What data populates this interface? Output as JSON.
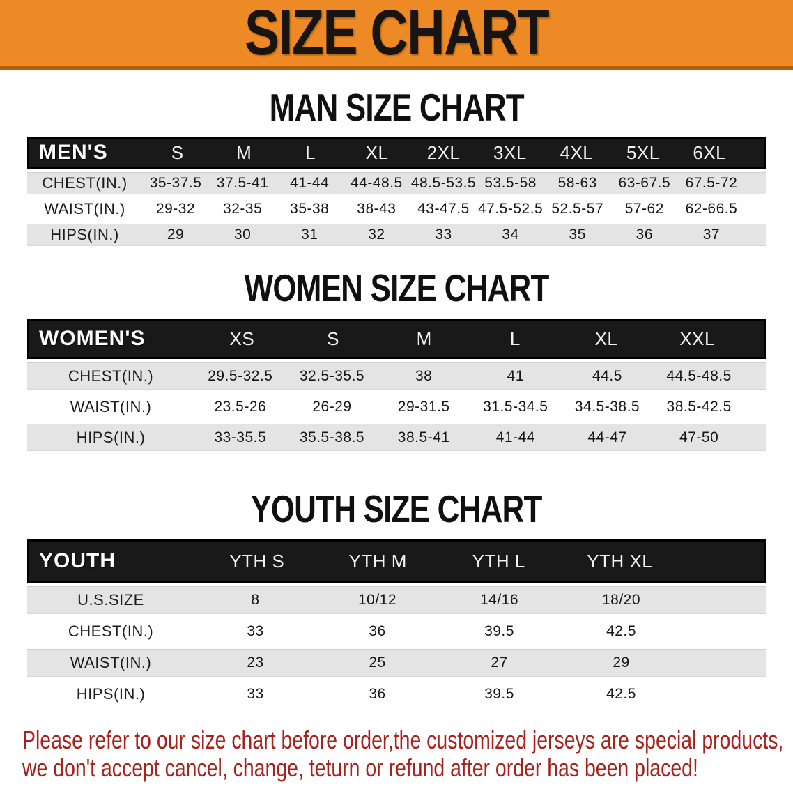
{
  "banner": {
    "title": "SIZE CHART"
  },
  "sections": [
    {
      "heading": "MAN SIZE CHART",
      "table": {
        "label": "MEN'S",
        "columns": [
          "S",
          "M",
          "L",
          "XL",
          "2XL",
          "3XL",
          "4XL",
          "5XL",
          "6XL"
        ],
        "rows": [
          {
            "label": "CHEST(IN.)",
            "values": [
              "35-37.5",
              "37.5-41",
              "41-44",
              "44-48.5",
              "48.5-53.5",
              "53.5-58",
              "58-63",
              "63-67.5",
              "67.5-72"
            ]
          },
          {
            "label": "WAIST(IN.)",
            "values": [
              "29-32",
              "32-35",
              "35-38",
              "38-43",
              "43-47.5",
              "47.5-52.5",
              "52.5-57",
              "57-62",
              "62-66.5"
            ]
          },
          {
            "label": "HIPS(IN.)",
            "values": [
              "29",
              "30",
              "31",
              "32",
              "33",
              "34",
              "35",
              "36",
              "37"
            ]
          }
        ]
      }
    },
    {
      "heading": "WOMEN SIZE CHART",
      "table": {
        "label": "WOMEN'S",
        "columns": [
          "XS",
          "S",
          "M",
          "L",
          "XL",
          "XXL"
        ],
        "rows": [
          {
            "label": "CHEST(IN.)",
            "values": [
              "29.5-32.5",
              "32.5-35.5",
              "38",
              "41",
              "44.5",
              "44.5-48.5"
            ]
          },
          {
            "label": "WAIST(IN.)",
            "values": [
              "23.5-26",
              "26-29",
              "29-31.5",
              "31.5-34.5",
              "34.5-38.5",
              "38.5-42.5"
            ]
          },
          {
            "label": "HIPS(IN.)",
            "values": [
              "33-35.5",
              "35.5-38.5",
              "38.5-41",
              "41-44",
              "44-47",
              "47-50"
            ]
          }
        ]
      }
    },
    {
      "heading": "YOUTH SIZE CHART",
      "table": {
        "label": "YOUTH",
        "columns": [
          "YTH S",
          "YTH M",
          "YTH L",
          "YTH XL"
        ],
        "rows": [
          {
            "label": "U.S.SIZE",
            "values": [
              "8",
              "10/12",
              "14/16",
              "18/20"
            ]
          },
          {
            "label": "CHEST(IN.)",
            "values": [
              "33",
              "36",
              "39.5",
              "42.5"
            ]
          },
          {
            "label": "WAIST(IN.)",
            "values": [
              "23",
              "25",
              "27",
              "29"
            ]
          },
          {
            "label": "HIPS(IN.)",
            "values": [
              "33",
              "36",
              "39.5",
              "42.5"
            ]
          }
        ]
      }
    }
  ],
  "disclaimer": {
    "line1": "Please refer to our size chart before order,the customized jerseys are special products,",
    "line2": "we don't accept cancel, change, teturn or refund after order has been placed!"
  },
  "colors": {
    "banner_bg": "#ed8a25",
    "banner_border": "#b85c10",
    "header_bg": "#191919",
    "stripe": "#e4e4e4",
    "red": "#a8221d"
  }
}
